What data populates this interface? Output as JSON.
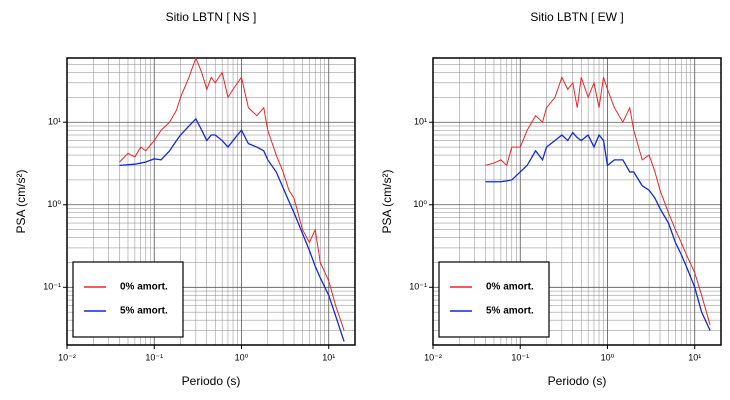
{
  "chart_data": [
    {
      "type": "line",
      "title": "Sitio LBTN [ NS ]",
      "xlabel": "Periodo (s)",
      "ylabel": "PSA (cm/s²)",
      "log_x": true,
      "log_y": true,
      "grid": true,
      "legend": "lower left",
      "xlim": [
        0.01,
        20
      ],
      "ylim": [
        0.02,
        60
      ],
      "xticks": [
        {
          "value": 0.01,
          "label": "10⁻²"
        },
        {
          "value": 0.1,
          "label": "10⁻¹"
        },
        {
          "value": 1,
          "label": "10⁰"
        },
        {
          "value": 10,
          "label": "10¹"
        }
      ],
      "yticks": [
        {
          "value": 0.1,
          "label": "10⁻¹"
        },
        {
          "value": 1,
          "label": "10⁰"
        },
        {
          "value": 10,
          "label": "10¹"
        }
      ],
      "x": [
        0.04,
        0.05,
        0.06,
        0.07,
        0.08,
        0.1,
        0.12,
        0.15,
        0.18,
        0.2,
        0.25,
        0.3,
        0.35,
        0.4,
        0.45,
        0.5,
        0.6,
        0.7,
        0.8,
        0.9,
        1.0,
        1.2,
        1.5,
        1.8,
        2.0,
        2.5,
        3,
        3.5,
        4,
        5,
        6,
        7,
        8,
        10,
        12,
        15
      ],
      "series": [
        {
          "name": "0% amort.",
          "color": "#e8262a",
          "values": [
            3.3,
            4.2,
            3.8,
            5,
            4.5,
            6,
            8,
            10,
            14,
            20,
            35,
            60,
            40,
            25,
            35,
            30,
            40,
            20,
            25,
            30,
            35,
            15,
            12,
            15,
            8,
            4,
            2.5,
            1.5,
            1.2,
            0.5,
            0.35,
            0.5,
            0.2,
            0.12,
            0.06,
            0.03
          ]
        },
        {
          "name": "5% amort.",
          "color": "#1428d8",
          "values": [
            3.0,
            3.05,
            3.1,
            3.2,
            3.3,
            3.6,
            3.5,
            4.5,
            6,
            7,
            9,
            11,
            8,
            6,
            7,
            7,
            6,
            5,
            6,
            7,
            8,
            5.5,
            5,
            4.5,
            3.5,
            2.5,
            1.6,
            1.1,
            0.8,
            0.45,
            0.28,
            0.18,
            0.13,
            0.08,
            0.045,
            0.022
          ]
        }
      ]
    },
    {
      "type": "line",
      "title": "Sitio LBTN [ EW ]",
      "xlabel": "Periodo (s)",
      "ylabel": "PSA (cm/s²)",
      "log_x": true,
      "log_y": true,
      "grid": true,
      "legend": "lower left",
      "xlim": [
        0.01,
        20
      ],
      "ylim": [
        0.02,
        60
      ],
      "xticks": [
        {
          "value": 0.01,
          "label": "10⁻²"
        },
        {
          "value": 0.1,
          "label": "10⁻¹"
        },
        {
          "value": 1,
          "label": "10⁰"
        },
        {
          "value": 10,
          "label": "10¹"
        }
      ],
      "yticks": [
        {
          "value": 0.1,
          "label": "10⁻¹"
        },
        {
          "value": 1,
          "label": "10⁰"
        },
        {
          "value": 10,
          "label": "10¹"
        }
      ],
      "x": [
        0.04,
        0.05,
        0.06,
        0.07,
        0.08,
        0.1,
        0.12,
        0.15,
        0.18,
        0.2,
        0.25,
        0.3,
        0.35,
        0.4,
        0.45,
        0.5,
        0.6,
        0.7,
        0.8,
        0.9,
        1.0,
        1.2,
        1.5,
        1.8,
        2.0,
        2.5,
        3,
        3.5,
        4,
        5,
        6,
        7,
        8,
        10,
        12,
        15
      ],
      "series": [
        {
          "name": "0% amort.",
          "color": "#e8262a",
          "values": [
            3,
            3.2,
            3.5,
            3,
            5,
            5,
            8,
            12,
            10,
            15,
            20,
            35,
            25,
            30,
            15,
            35,
            20,
            30,
            15,
            35,
            25,
            15,
            10,
            15,
            8,
            3.5,
            4,
            2.5,
            1.5,
            0.8,
            0.5,
            0.35,
            0.25,
            0.15,
            0.08,
            0.035
          ]
        },
        {
          "name": "5% amort.",
          "color": "#1428d8",
          "values": [
            1.9,
            1.9,
            1.9,
            1.95,
            2.0,
            2.5,
            3.0,
            4.5,
            3.5,
            5,
            6,
            7,
            6,
            7.5,
            6.5,
            6,
            7,
            5,
            7,
            6,
            3,
            3.5,
            3.5,
            2.5,
            2.5,
            1.7,
            1.5,
            1.2,
            0.9,
            0.6,
            0.35,
            0.25,
            0.18,
            0.1,
            0.05,
            0.03
          ]
        }
      ]
    }
  ]
}
